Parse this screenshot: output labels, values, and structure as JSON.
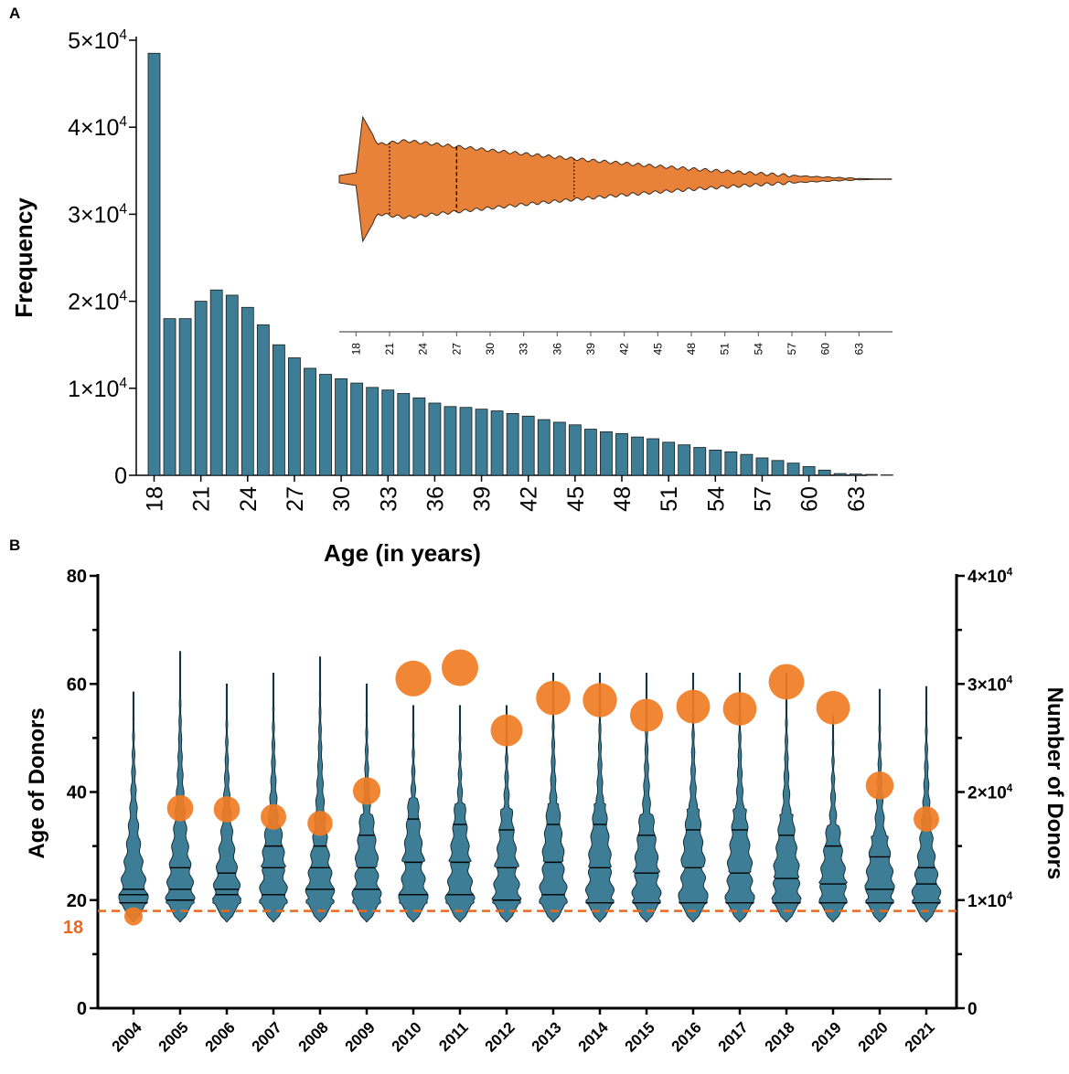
{
  "colors": {
    "bar": "#3d7e96",
    "violin_inset": "#e8823a",
    "dot": "#f07c23",
    "ref_line": "#e8691f",
    "axis": "#000000"
  },
  "chart_data": [
    {
      "panel": "A",
      "type": "bar",
      "title": "",
      "xlabel": "Age (in years)",
      "ylabel": "Frequency",
      "ylim": [
        0,
        50000
      ],
      "yticks": [
        0,
        10000,
        20000,
        30000,
        40000,
        50000
      ],
      "ytick_labels": [
        {
          "base": "0",
          "exp": ""
        },
        {
          "base": "1×10",
          "exp": "4"
        },
        {
          "base": "2×10",
          "exp": "4"
        },
        {
          "base": "3×10",
          "exp": "4"
        },
        {
          "base": "4×10",
          "exp": "4"
        },
        {
          "base": "5×10",
          "exp": "4"
        }
      ],
      "x": [
        18,
        19,
        20,
        21,
        22,
        23,
        24,
        25,
        26,
        27,
        28,
        29,
        30,
        31,
        32,
        33,
        34,
        35,
        36,
        37,
        38,
        39,
        40,
        41,
        42,
        43,
        44,
        45,
        46,
        47,
        48,
        49,
        50,
        51,
        52,
        53,
        54,
        55,
        56,
        57,
        58,
        59,
        60,
        61,
        62,
        63,
        64,
        65
      ],
      "xtick_labels": [
        "18",
        "21",
        "24",
        "27",
        "30",
        "33",
        "36",
        "39",
        "42",
        "45",
        "48",
        "51",
        "54",
        "57",
        "60",
        "63"
      ],
      "values": [
        48500,
        18000,
        18000,
        20000,
        21300,
        20700,
        19300,
        17300,
        15000,
        13500,
        12300,
        11600,
        11100,
        10600,
        10100,
        9800,
        9400,
        8900,
        8300,
        7900,
        7800,
        7600,
        7400,
        7100,
        6800,
        6400,
        6100,
        5800,
        5300,
        5000,
        4800,
        4400,
        4200,
        3800,
        3500,
        3200,
        2900,
        2700,
        2400,
        2000,
        1700,
        1400,
        1000,
        600,
        200,
        150,
        100,
        50
      ],
      "inset": {
        "type": "violin",
        "xlim": [
          16.5,
          66
        ],
        "xtick_labels": [
          "18",
          "21",
          "24",
          "27",
          "30",
          "33",
          "36",
          "39",
          "42",
          "45",
          "48",
          "51",
          "54",
          "57",
          "60",
          "63"
        ],
        "quartiles": {
          "q1": 21,
          "median": 27,
          "q3": 37.5
        }
      }
    },
    {
      "panel": "B",
      "type": "violin+scatter",
      "title": "",
      "categories": [
        "2004",
        "2005",
        "2006",
        "2007",
        "2008",
        "2009",
        "2010",
        "2011",
        "2012",
        "2013",
        "2014",
        "2015",
        "2016",
        "2017",
        "2018",
        "2019",
        "2020",
        "2021"
      ],
      "ylabel_left": "Age of Donors",
      "ylim_left": [
        0,
        80
      ],
      "yticks_left": [
        0,
        20,
        40,
        60,
        80
      ],
      "ylabel_right": "Number of Donors",
      "ylim_right": [
        0,
        40000
      ],
      "ytick_labels_right": [
        {
          "base": "0",
          "exp": ""
        },
        {
          "base": "1×10",
          "exp": "4"
        },
        {
          "base": "2×10",
          "exp": "4"
        },
        {
          "base": "3×10",
          "exp": "4"
        },
        {
          "base": "4×10",
          "exp": "4"
        }
      ],
      "reference_line": {
        "value": 18,
        "label": "18"
      },
      "donor_counts": [
        8500,
        18500,
        18400,
        17700,
        17100,
        20100,
        30500,
        31500,
        25700,
        28700,
        28500,
        27100,
        27900,
        27700,
        30200,
        27800,
        20600,
        17500
      ],
      "age_max": [
        58.5,
        66,
        60,
        62,
        65,
        60,
        56,
        56,
        56,
        62,
        62,
        62,
        62,
        62,
        62,
        54,
        59,
        59.5
      ],
      "quartiles": [
        {
          "q1": 19.5,
          "median": 21,
          "q3": 22
        },
        {
          "q1": 20,
          "median": 22,
          "q3": 26
        },
        {
          "q1": 21,
          "median": 22,
          "q3": 25
        },
        {
          "q1": 21,
          "median": 26,
          "q3": 30
        },
        {
          "q1": 22,
          "median": 26,
          "q3": 30
        },
        {
          "q1": 22,
          "median": 26,
          "q3": 32
        },
        {
          "q1": 21,
          "median": 27,
          "q3": 35
        },
        {
          "q1": 21,
          "median": 27,
          "q3": 34
        },
        {
          "q1": 20,
          "median": 26,
          "q3": 33
        },
        {
          "q1": 21,
          "median": 27,
          "q3": 34
        },
        {
          "q1": 19.5,
          "median": 26,
          "q3": 34
        },
        {
          "q1": 19.5,
          "median": 25,
          "q3": 32
        },
        {
          "q1": 19.5,
          "median": 26,
          "q3": 33
        },
        {
          "q1": 19.5,
          "median": 25,
          "q3": 33
        },
        {
          "q1": 19.5,
          "median": 24,
          "q3": 32
        },
        {
          "q1": 19.5,
          "median": 23,
          "q3": 30
        },
        {
          "q1": 19.5,
          "median": 22,
          "q3": 28
        },
        {
          "q1": 19.5,
          "median": 23,
          "q3": 26
        }
      ]
    }
  ],
  "labels": {
    "panel_a": "A",
    "panel_b": "B"
  }
}
